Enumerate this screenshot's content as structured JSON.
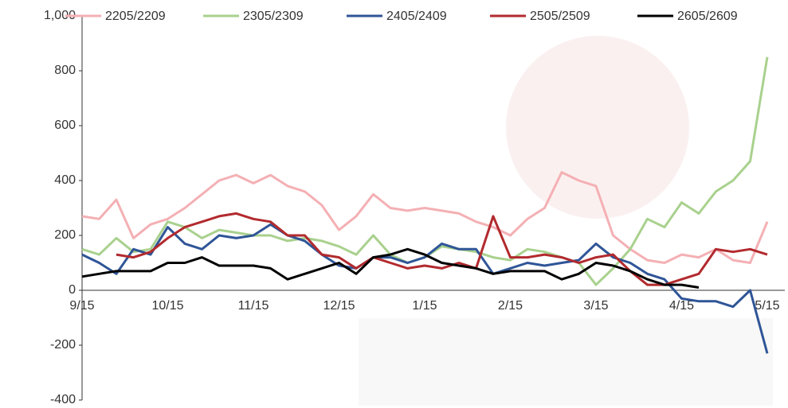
{
  "chart_data": {
    "type": "line",
    "categories": [
      "9/15",
      null,
      null,
      null,
      null,
      "10/15",
      null,
      null,
      null,
      null,
      "11/15",
      null,
      null,
      null,
      null,
      "12/15",
      null,
      null,
      null,
      null,
      "1/15",
      null,
      null,
      null,
      null,
      "2/15",
      null,
      null,
      null,
      null,
      "3/15",
      null,
      null,
      null,
      null,
      "4/15",
      null,
      null,
      null,
      null,
      "5/15"
    ],
    "series": [
      {
        "name": "2205/2209",
        "color": "#f4b0b4",
        "values": [
          270,
          260,
          330,
          190,
          240,
          260,
          300,
          350,
          400,
          420,
          390,
          420,
          380,
          360,
          310,
          220,
          270,
          350,
          300,
          290,
          300,
          290,
          280,
          250,
          230,
          200,
          260,
          300,
          430,
          400,
          380,
          200,
          150,
          110,
          100,
          130,
          120,
          150,
          110,
          100,
          250
        ]
      },
      {
        "name": "2305/2309",
        "color": "#a9d18e",
        "values": [
          150,
          130,
          190,
          140,
          150,
          250,
          230,
          190,
          220,
          210,
          200,
          200,
          180,
          190,
          180,
          160,
          130,
          200,
          130,
          100,
          120,
          160,
          150,
          140,
          120,
          110,
          150,
          140,
          120,
          100,
          20,
          80,
          150,
          260,
          230,
          320,
          280,
          360,
          400,
          470,
          850
        ]
      },
      {
        "name": "2405/2409",
        "color": "#2f5597",
        "values": [
          130,
          100,
          60,
          150,
          130,
          230,
          170,
          150,
          200,
          190,
          200,
          240,
          200,
          180,
          130,
          90,
          80,
          120,
          120,
          100,
          120,
          170,
          150,
          150,
          60,
          80,
          100,
          90,
          100,
          110,
          170,
          120,
          100,
          60,
          40,
          -30,
          -40,
          -40,
          -60,
          0,
          -230
        ]
      },
      {
        "name": "2505/2509",
        "color": "#b22a2e",
        "values": [
          null,
          null,
          130,
          120,
          140,
          190,
          230,
          250,
          270,
          280,
          260,
          250,
          200,
          200,
          130,
          120,
          80,
          120,
          100,
          80,
          90,
          80,
          100,
          80,
          270,
          120,
          120,
          130,
          120,
          100,
          120,
          130,
          70,
          20,
          20,
          40,
          60,
          150,
          140,
          150,
          130
        ]
      },
      {
        "name": "2605/2609",
        "color": "#000000",
        "values": [
          50,
          60,
          70,
          70,
          70,
          100,
          100,
          120,
          90,
          90,
          90,
          80,
          40,
          60,
          80,
          100,
          60,
          120,
          130,
          150,
          130,
          100,
          90,
          80,
          60,
          70,
          70,
          70,
          40,
          60,
          100,
          90,
          70,
          40,
          20,
          20,
          10,
          null,
          null,
          null,
          null
        ]
      }
    ],
    "ylim": [
      -400,
      1000
    ],
    "yticks": [
      -400,
      -200,
      0,
      200,
      400,
      600,
      800,
      {
        "value": 1000,
        "label": "1,000"
      }
    ],
    "grid": false
  }
}
